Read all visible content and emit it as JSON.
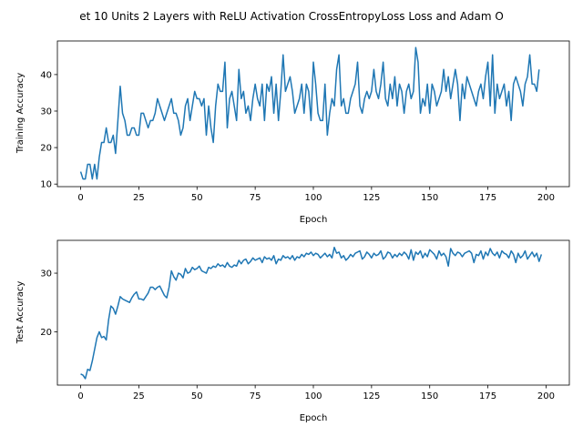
{
  "chart_data": {
    "title": "et 10 Units 2 Layers with ReLU Activation CrossEntropyLoss Loss and Adam O",
    "line_color": "#1f77b4",
    "charts": [
      {
        "type": "line",
        "xlabel": "Epoch",
        "ylabel": "Training Accuracy",
        "xlim": [
          -10,
          210
        ],
        "ylim": [
          9.3,
          49.2
        ],
        "xticks": [
          0,
          25,
          50,
          75,
          100,
          125,
          150,
          175,
          200
        ],
        "yticks": [
          10,
          20,
          30,
          40
        ],
        "x_start": 0,
        "values": [
          13.4,
          11.4,
          11.4,
          15.4,
          15.4,
          11.4,
          15.4,
          11.4,
          17.4,
          21.4,
          21.4,
          25.4,
          21.4,
          21.4,
          23.4,
          18.4,
          27.4,
          36.8,
          29.4,
          27.4,
          23.4,
          23.4,
          25.4,
          25.4,
          23.4,
          23.4,
          29.4,
          29.4,
          27.4,
          25.4,
          27.4,
          27.4,
          29.4,
          33.4,
          31.4,
          29.4,
          27.4,
          29.4,
          31.4,
          33.4,
          29.4,
          29.4,
          27.4,
          23.4,
          25.4,
          31.4,
          33.4,
          27.4,
          31.4,
          35.4,
          33.4,
          33.4,
          31.4,
          33.4,
          23.4,
          31.4,
          25.4,
          21.4,
          31.4,
          37.4,
          35.4,
          35.4,
          43.4,
          25.4,
          33.4,
          35.4,
          31.4,
          27.4,
          41.4,
          33.4,
          35.4,
          29.4,
          31.4,
          27.4,
          33.4,
          37.4,
          33.4,
          31.4,
          37.4,
          27.4,
          37.4,
          35.4,
          39.4,
          29.4,
          37.4,
          27.4,
          35.4,
          45.4,
          35.4,
          37.4,
          39.4,
          35.4,
          29.4,
          31.4,
          33.4,
          37.4,
          29.4,
          37.4,
          35.4,
          27.4,
          43.4,
          37.4,
          29.4,
          27.4,
          27.4,
          37.4,
          23.4,
          29.4,
          33.4,
          31.4,
          41.4,
          45.4,
          31.4,
          33.4,
          29.4,
          29.4,
          33.4,
          35.4,
          37.4,
          43.4,
          31.4,
          29.4,
          33.4,
          35.4,
          33.4,
          35.4,
          41.4,
          35.4,
          33.4,
          37.4,
          43.4,
          33.4,
          31.4,
          37.4,
          33.4,
          39.4,
          31.4,
          37.4,
          35.4,
          29.4,
          35.4,
          37.4,
          33.4,
          35.4,
          47.4,
          43.4,
          29.4,
          33.4,
          31.4,
          37.4,
          29.4,
          37.4,
          35.4,
          31.4,
          33.4,
          35.4,
          41.4,
          35.4,
          39.4,
          33.4,
          37.4,
          41.4,
          37.4,
          27.4,
          37.4,
          33.4,
          39.4,
          37.4,
          35.4,
          33.4,
          31.4,
          35.4,
          37.4,
          33.4,
          39.4,
          43.4,
          31.4,
          45.4,
          29.4,
          37.4,
          33.4,
          35.4,
          37.4,
          31.4,
          35.4,
          27.4,
          37.4,
          39.4,
          37.4,
          35.4,
          31.4,
          37.4,
          39.4,
          45.4,
          37.4,
          37.4,
          35.4,
          41.4
        ]
      },
      {
        "type": "line",
        "xlabel": "Epoch",
        "ylabel": "Test Accuracy",
        "xlim": [
          -10,
          210
        ],
        "ylim": [
          10.9,
          35.6
        ],
        "xticks": [
          0,
          25,
          50,
          75,
          100,
          125,
          150,
          175,
          200
        ],
        "yticks": [
          20,
          30
        ],
        "x_start": 0,
        "values": [
          12.8,
          12.6,
          12.0,
          13.6,
          13.4,
          15.0,
          17.0,
          19.0,
          20.0,
          19.0,
          19.2,
          18.6,
          22.0,
          24.4,
          24.0,
          23.0,
          24.4,
          26.0,
          25.6,
          25.4,
          25.2,
          25.0,
          25.8,
          26.4,
          26.8,
          25.6,
          25.6,
          25.4,
          26.0,
          26.6,
          27.6,
          27.6,
          27.2,
          27.6,
          27.8,
          27.0,
          26.2,
          25.8,
          27.6,
          30.4,
          29.4,
          28.8,
          30.0,
          29.8,
          29.2,
          30.8,
          30.0,
          30.2,
          31.0,
          30.6,
          30.8,
          31.2,
          30.4,
          30.2,
          30.0,
          31.0,
          30.8,
          31.2,
          31.0,
          31.6,
          31.2,
          31.4,
          31.0,
          31.8,
          31.2,
          31.0,
          31.4,
          31.2,
          32.2,
          31.6,
          32.2,
          32.4,
          31.6,
          32.0,
          32.6,
          32.2,
          32.4,
          32.6,
          31.8,
          32.8,
          32.4,
          32.6,
          32.2,
          33.0,
          31.6,
          32.4,
          32.2,
          33.0,
          32.6,
          32.8,
          32.4,
          33.0,
          32.2,
          32.8,
          32.6,
          33.2,
          32.8,
          33.4,
          33.2,
          33.6,
          33.0,
          33.4,
          33.2,
          32.6,
          33.0,
          33.4,
          32.8,
          33.2,
          32.6,
          34.4,
          33.4,
          33.6,
          32.6,
          33.0,
          32.2,
          32.6,
          33.2,
          32.8,
          33.4,
          33.6,
          33.8,
          32.4,
          32.8,
          33.6,
          33.2,
          32.6,
          33.4,
          33.0,
          33.2,
          33.8,
          32.4,
          32.8,
          33.6,
          33.4,
          32.6,
          33.2,
          32.8,
          33.4,
          33.0,
          33.6,
          33.2,
          32.4,
          34.0,
          32.2,
          33.6,
          33.2,
          33.8,
          32.6,
          33.4,
          32.8,
          34.0,
          33.6,
          33.2,
          32.4,
          33.8,
          33.0,
          33.4,
          32.8,
          31.2,
          34.2,
          33.4,
          33.0,
          33.6,
          33.4,
          32.8,
          33.4,
          33.6,
          33.8,
          33.4,
          31.8,
          33.2,
          33.0,
          33.8,
          32.4,
          33.6,
          33.0,
          34.2,
          33.4,
          33.0,
          33.6,
          32.6,
          33.8,
          33.4,
          33.2,
          32.6,
          33.8,
          33.2,
          31.8,
          33.4,
          32.6,
          33.0,
          33.8,
          32.4,
          33.0,
          33.6,
          32.8,
          33.4,
          32.0,
          33.2
        ]
      }
    ]
  }
}
